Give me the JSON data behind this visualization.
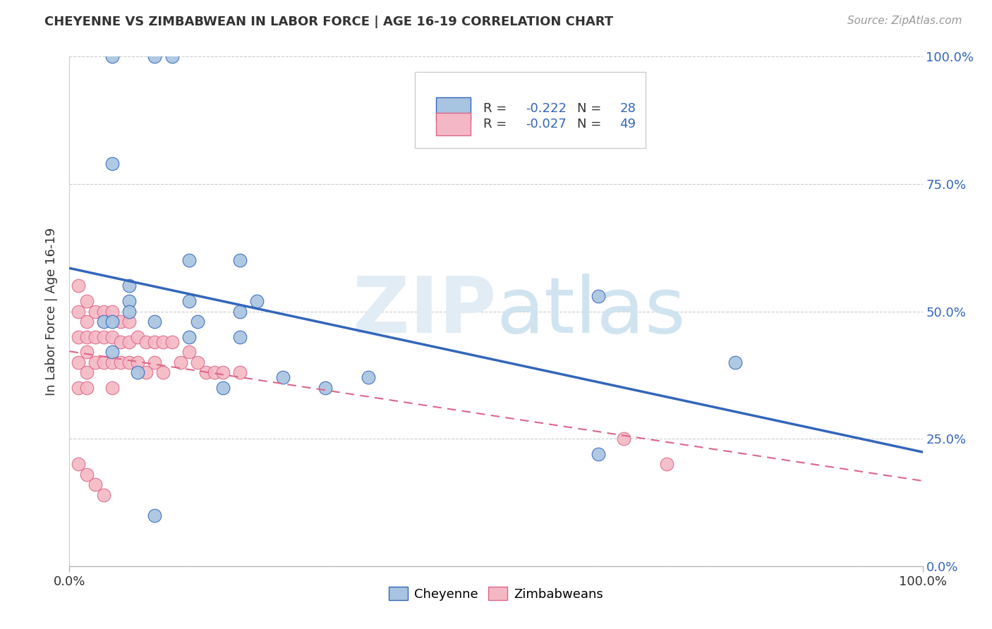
{
  "title": "CHEYENNE VS ZIMBABWEAN IN LABOR FORCE | AGE 16-19 CORRELATION CHART",
  "source_text": "Source: ZipAtlas.com",
  "ylabel": "In Labor Force | Age 16-19",
  "xlim": [
    0.0,
    1.0
  ],
  "ylim": [
    0.0,
    1.0
  ],
  "ytick_labels": [
    "0.0%",
    "25.0%",
    "50.0%",
    "75.0%",
    "100.0%"
  ],
  "ytick_vals": [
    0.0,
    0.25,
    0.5,
    0.75,
    1.0
  ],
  "grid_color": "#cccccc",
  "background_color": "#ffffff",
  "cheyenne_color": "#a8c4e0",
  "zimbabwean_color": "#f4b8c4",
  "cheyenne_line_color": "#3366bb",
  "zimbabwean_line_color": "#dd6688",
  "cheyenne_R": -0.222,
  "cheyenne_N": 28,
  "zimbabwean_R": -0.027,
  "zimbabwean_N": 49,
  "cheyenne_x": [
    0.05,
    0.1,
    0.12,
    0.05,
    0.14,
    0.2,
    0.07,
    0.07,
    0.14,
    0.2,
    0.22,
    0.07,
    0.04,
    0.05,
    0.1,
    0.15,
    0.62,
    0.78,
    0.05,
    0.14,
    0.2,
    0.08,
    0.18,
    0.25,
    0.3,
    0.35,
    0.62,
    0.1
  ],
  "cheyenne_y": [
    1.0,
    1.0,
    1.0,
    0.79,
    0.6,
    0.6,
    0.55,
    0.52,
    0.52,
    0.5,
    0.52,
    0.5,
    0.48,
    0.48,
    0.48,
    0.48,
    0.53,
    0.4,
    0.42,
    0.45,
    0.45,
    0.38,
    0.35,
    0.37,
    0.35,
    0.37,
    0.22,
    0.1
  ],
  "zimbabwean_x": [
    0.01,
    0.01,
    0.01,
    0.01,
    0.01,
    0.02,
    0.02,
    0.02,
    0.02,
    0.02,
    0.02,
    0.03,
    0.03,
    0.03,
    0.04,
    0.04,
    0.04,
    0.05,
    0.05,
    0.05,
    0.05,
    0.06,
    0.06,
    0.06,
    0.07,
    0.07,
    0.07,
    0.08,
    0.08,
    0.09,
    0.09,
    0.1,
    0.1,
    0.11,
    0.11,
    0.12,
    0.13,
    0.14,
    0.15,
    0.16,
    0.17,
    0.18,
    0.2,
    0.65,
    0.7,
    0.01,
    0.02,
    0.03,
    0.04
  ],
  "zimbabwean_y": [
    0.55,
    0.5,
    0.45,
    0.4,
    0.35,
    0.52,
    0.48,
    0.45,
    0.42,
    0.38,
    0.35,
    0.5,
    0.45,
    0.4,
    0.5,
    0.45,
    0.4,
    0.5,
    0.45,
    0.4,
    0.35,
    0.48,
    0.44,
    0.4,
    0.48,
    0.44,
    0.4,
    0.45,
    0.4,
    0.44,
    0.38,
    0.44,
    0.4,
    0.44,
    0.38,
    0.44,
    0.4,
    0.42,
    0.4,
    0.38,
    0.38,
    0.38,
    0.38,
    0.25,
    0.2,
    0.2,
    0.18,
    0.16,
    0.14
  ]
}
